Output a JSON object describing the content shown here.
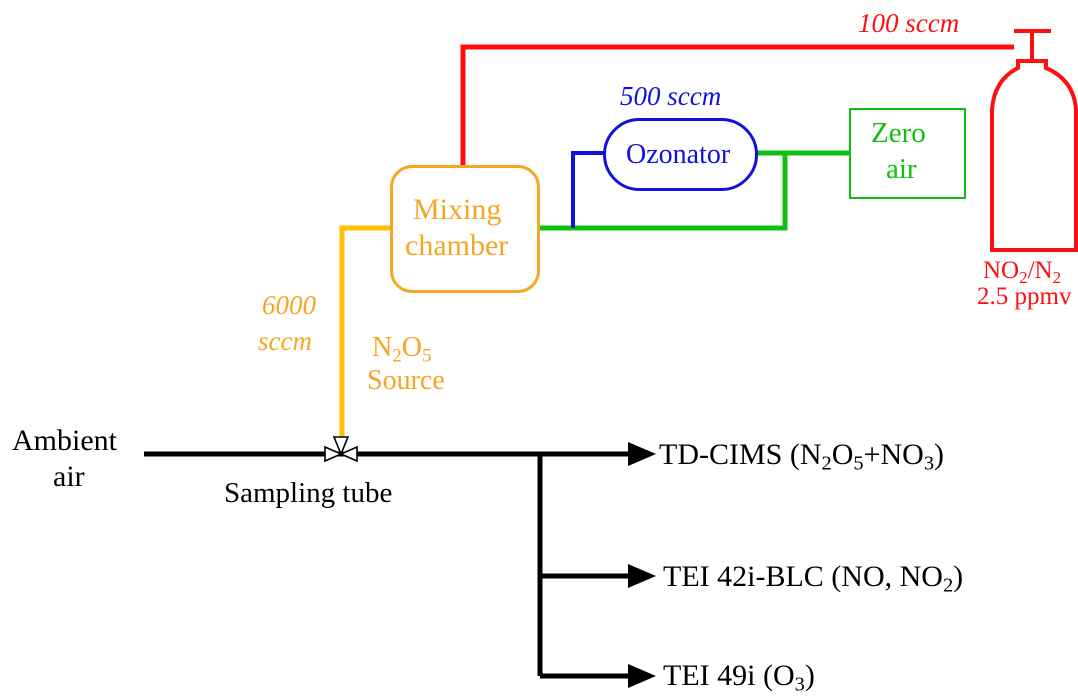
{
  "colors": {
    "red": "#ff1010",
    "blue": "#1010e0",
    "green": "#10c010",
    "orange": "#f5a623",
    "yellow": "#ffc000",
    "black": "#000000"
  },
  "icons": {
    "cylinder": "gas-cylinder-icon",
    "valve": "three-way-valve-icon",
    "arrow": "arrow-right-icon"
  },
  "flows": {
    "no2": "100 sccm",
    "ozone": "500 sccm",
    "n2o5_line1": "6000",
    "n2o5_line2": "sccm"
  },
  "components": {
    "ozonator": "Ozonator",
    "mixing_line1": "Mixing",
    "mixing_line2": "chamber",
    "zero_line1": "Zero",
    "zero_line2": "air",
    "cylinder_line1_a": "NO",
    "cylinder_line1_sub1": "2",
    "cylinder_line1_b": "/N",
    "cylinder_line1_sub2": "2",
    "cylinder_line2": "2.5 ppmv",
    "source_a": "N",
    "source_sub1": "2",
    "source_b": "O",
    "source_sub2": "5",
    "source_line2": "Source"
  },
  "inlet": {
    "line1": "Ambient",
    "line2": "air",
    "tube": "Sampling tube"
  },
  "instruments": {
    "td_cims": {
      "a": "TD-CIMS (N",
      "s1": "2",
      "b": "O",
      "s2": "5",
      "c": "+NO",
      "s3": "3",
      "d": ")"
    },
    "tei42": {
      "a": "TEI 42i-BLC (NO, NO",
      "s1": "2",
      "b": ")"
    },
    "tei49": {
      "a": "TEI 49i (O",
      "s1": "3",
      "b": ")"
    }
  }
}
